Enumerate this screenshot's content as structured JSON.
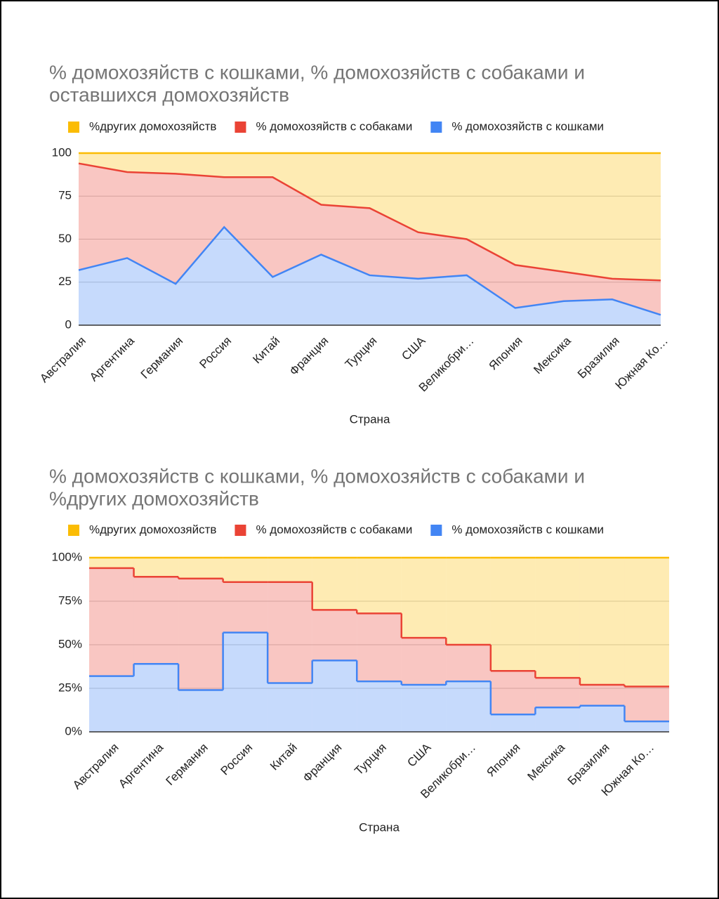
{
  "chart_data": [
    {
      "type": "area",
      "title": "% домохозяйств с кошками, % домохозяйств с собаками и",
      "title_line2": "оставшихся домохозяйств",
      "x_label": "Страна",
      "categories": [
        "Австралия",
        "Аргентина",
        "Германия",
        "Россия",
        "Китай",
        "Франция",
        "Турция",
        "США",
        "Великобри…",
        "Япония",
        "Мексика",
        "Бразилия",
        "Южная Ко…"
      ],
      "series": [
        {
          "name": "% домохозяйств с кошками",
          "color": "#4285f4",
          "values": [
            32,
            39,
            24,
            57,
            28,
            41,
            29,
            27,
            29,
            10,
            14,
            15,
            6
          ]
        },
        {
          "name": "% домохозяйств с собаками",
          "color": "#ea4335",
          "values": [
            62,
            50,
            64,
            29,
            58,
            29,
            39,
            27,
            21,
            25,
            17,
            12,
            20
          ]
        },
        {
          "name": "%других домохозяйств",
          "color": "#fbbc04",
          "values": [
            6,
            11,
            12,
            14,
            14,
            30,
            32,
            46,
            50,
            65,
            69,
            73,
            74
          ]
        }
      ],
      "stacked": true,
      "ylim": [
        0,
        100
      ],
      "yticks": [
        0,
        25,
        50,
        75,
        100
      ],
      "grid": true,
      "legend": "top"
    },
    {
      "type": "steppedarea",
      "title": "% домохозяйств с кошками, % домохозяйств с собаками и",
      "title_line2": "%других домохозяйств",
      "x_label": "Страна",
      "categories": [
        "Австралия",
        "Аргентина",
        "Германия",
        "Россия",
        "Китай",
        "Франция",
        "Турция",
        "США",
        "Великобри…",
        "Япония",
        "Мексика",
        "Бразилия",
        "Южная Ко…"
      ],
      "series": [
        {
          "name": "% домохозяйств с кошками",
          "color": "#4285f4",
          "values": [
            32,
            39,
            24,
            57,
            28,
            41,
            29,
            27,
            29,
            10,
            14,
            15,
            6
          ]
        },
        {
          "name": "% домохозяйств с собаками",
          "color": "#ea4335",
          "values": [
            62,
            50,
            64,
            29,
            58,
            29,
            39,
            27,
            21,
            25,
            17,
            12,
            20
          ]
        },
        {
          "name": "%других домохозяйств",
          "color": "#fbbc04",
          "values": [
            6,
            11,
            12,
            14,
            14,
            30,
            32,
            46,
            50,
            65,
            69,
            73,
            74
          ]
        }
      ],
      "stacked": true,
      "ylim": [
        0,
        100
      ],
      "yticks": [
        {
          "value": 0,
          "label": "0%"
        },
        {
          "value": 25,
          "label": "25%"
        },
        {
          "value": 50,
          "label": "50%"
        },
        {
          "value": 75,
          "label": "75%"
        },
        {
          "value": 100,
          "label": "100%"
        }
      ],
      "grid": true,
      "legend": "top"
    }
  ]
}
